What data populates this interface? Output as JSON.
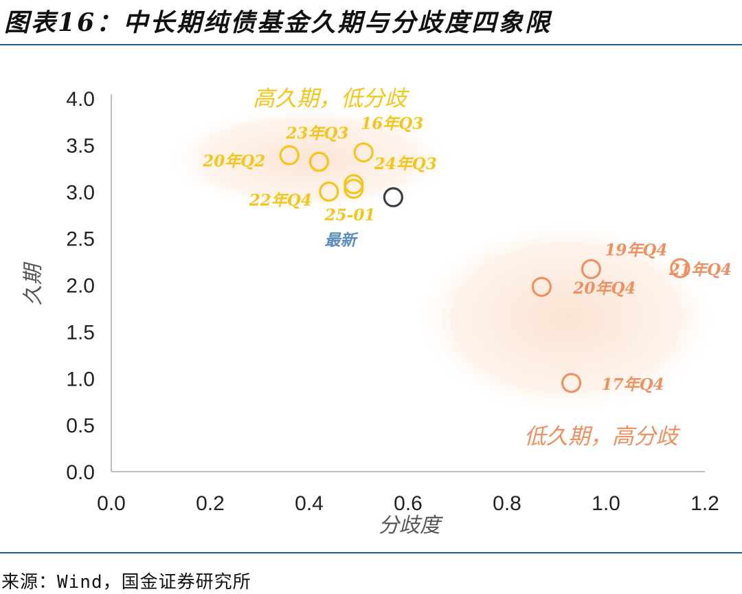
{
  "title": "图表16：中长期纯债基金久期与分歧度四象限",
  "source": "来源：Wind，国金证券研究所",
  "colors": {
    "yellow": "#f5c518",
    "orange": "#ef9060",
    "latest": "#3a3f4a",
    "latest_label": "#5b8dbd",
    "axis": "#bfbfbf",
    "shade_yellow": "#fcece0",
    "shade_orange": "#fde9dc"
  },
  "chart_data": {
    "type": "scatter",
    "xlabel": "分歧度",
    "ylabel": "久期",
    "xlim": [
      0,
      1.2
    ],
    "ylim": [
      0,
      4.0
    ],
    "xticks": [
      "0.0",
      "0.2",
      "0.4",
      "0.6",
      "0.8",
      "1.0",
      "1.2"
    ],
    "yticks": [
      "0.0",
      "0.5",
      "1.0",
      "1.5",
      "2.0",
      "2.5",
      "3.0",
      "3.5",
      "4.0"
    ],
    "grid": false,
    "regions": [
      {
        "label": "高久期，低分歧",
        "color": "yellow"
      },
      {
        "label": "低久期，高分歧",
        "color": "orange"
      }
    ],
    "points": [
      {
        "label": "20年Q2",
        "x": 0.36,
        "y": 3.39,
        "color": "yellow"
      },
      {
        "label": "",
        "x": 0.42,
        "y": 3.32,
        "color": "yellow"
      },
      {
        "label": "23年Q3",
        "x": 0.42,
        "y": 3.32,
        "color": "yellow"
      },
      {
        "label": "16年Q3",
        "x": 0.51,
        "y": 3.42,
        "color": "yellow"
      },
      {
        "label": "24年Q3",
        "x": 0.49,
        "y": 3.08,
        "color": "yellow"
      },
      {
        "label": "22年Q4",
        "x": 0.44,
        "y": 3.0,
        "color": "yellow"
      },
      {
        "label": "25-01",
        "x": 0.49,
        "y": 3.03,
        "color": "yellow"
      },
      {
        "label": "最新",
        "x": 0.57,
        "y": 2.94,
        "color": "latest"
      },
      {
        "label": "19年Q4",
        "x": 0.97,
        "y": 2.17,
        "color": "orange"
      },
      {
        "label": "21年Q4",
        "x": 1.15,
        "y": 2.18,
        "color": "orange"
      },
      {
        "label": "20年Q4",
        "x": 0.87,
        "y": 1.98,
        "color": "orange"
      },
      {
        "label": "17年Q4",
        "x": 0.93,
        "y": 0.95,
        "color": "orange"
      }
    ]
  }
}
